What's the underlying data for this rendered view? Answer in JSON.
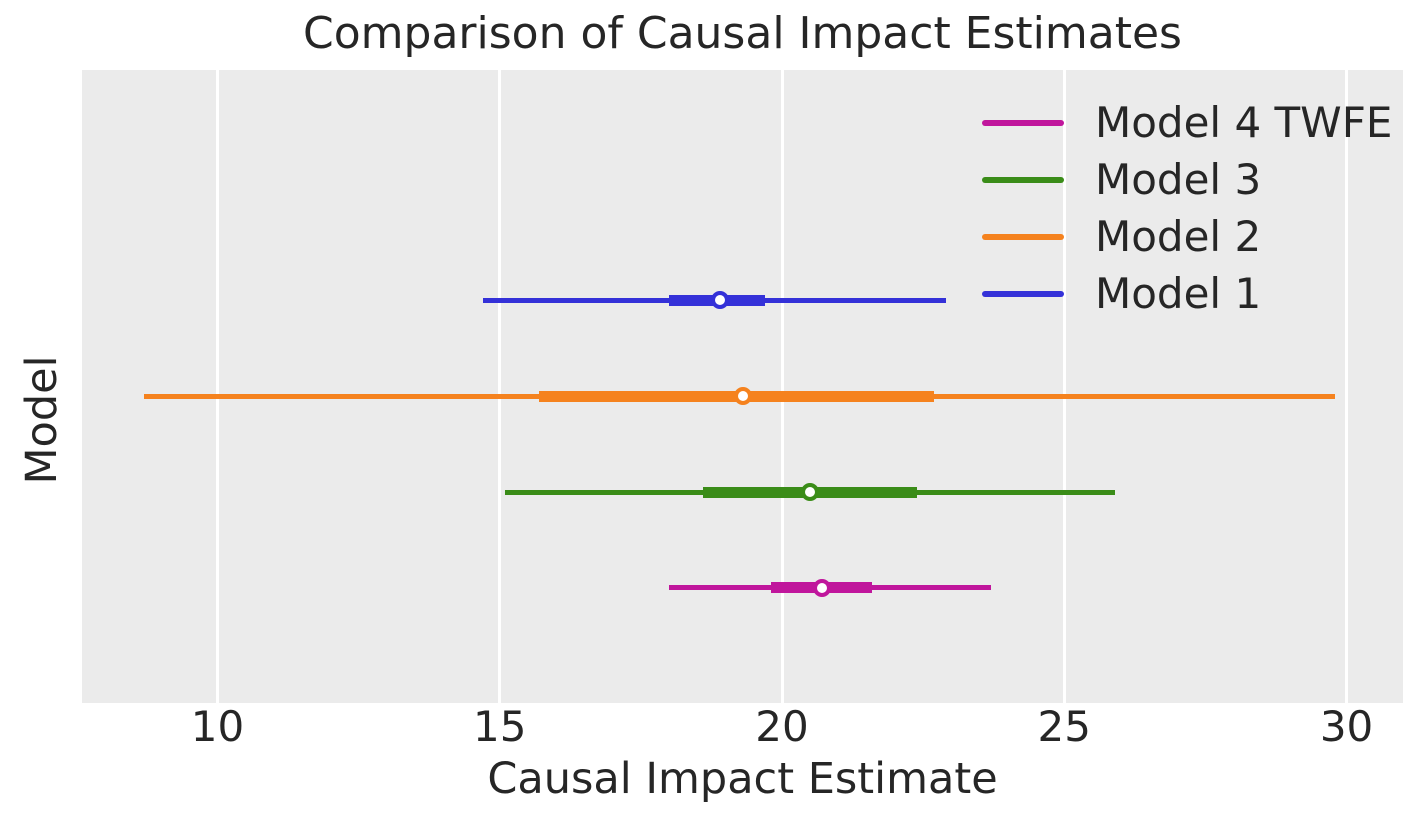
{
  "chart_data": {
    "type": "pointrange",
    "title": "Comparison of Causal Impact Estimates",
    "xlabel": "Causal Impact Estimate",
    "ylabel": "Model",
    "x_ticks": [
      10,
      15,
      20,
      25,
      30
    ],
    "xlim": [
      7.6,
      31.0
    ],
    "ylim": [
      -1.2,
      5.4
    ],
    "grid": "vertical-only",
    "legend_position": "upper right",
    "plot_background": "#ebebeb",
    "gridline_color": "#ffffff",
    "text_color": "#262626",
    "marker_face_color": "#ffffff",
    "series": [
      {
        "name": "Model 1",
        "color": "#3431d8",
        "y": 3,
        "point": 18.9,
        "inner_interval": [
          18.0,
          19.7
        ],
        "outer_interval": [
          14.7,
          22.9
        ]
      },
      {
        "name": "Model 2",
        "color": "#f5821e",
        "y": 2,
        "point": 19.3,
        "inner_interval": [
          15.7,
          22.7
        ],
        "outer_interval": [
          8.7,
          29.8
        ]
      },
      {
        "name": "Model 3",
        "color": "#3a8c18",
        "y": 1,
        "point": 20.5,
        "inner_interval": [
          18.6,
          22.4
        ],
        "outer_interval": [
          15.1,
          25.9
        ]
      },
      {
        "name": "Model 4 TWFE",
        "color": "#c0169c",
        "y": 0,
        "point": 20.7,
        "inner_interval": [
          19.8,
          21.6
        ],
        "outer_interval": [
          18.0,
          23.7
        ]
      }
    ],
    "legend": [
      {
        "label": "Model 4 TWFE",
        "color": "#c0169c"
      },
      {
        "label": "Model 3",
        "color": "#3a8c18"
      },
      {
        "label": "Model 2",
        "color": "#f5821e"
      },
      {
        "label": "Model 1",
        "color": "#3431d8"
      }
    ]
  }
}
